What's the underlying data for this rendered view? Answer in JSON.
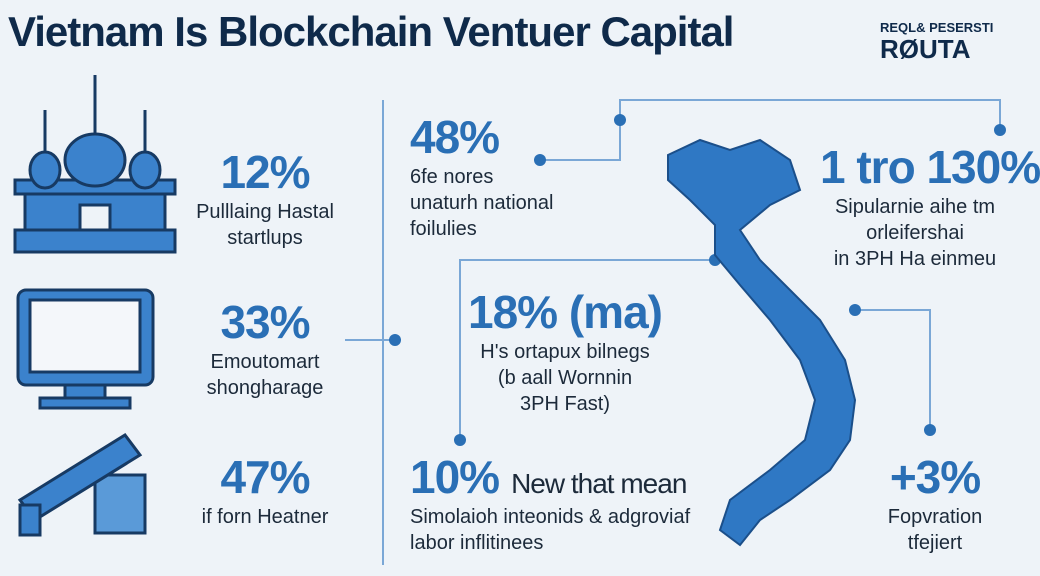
{
  "header": {
    "title": "Vietnam Is Blockchain Ventuer Capital",
    "logo": {
      "top": "REQL& PESERSTI",
      "bottom": "RØUTA"
    }
  },
  "stats": [
    {
      "value": "12%",
      "lines": [
        "Pulllaing Hastal",
        "startlups"
      ]
    },
    {
      "value": "33%",
      "lines": [
        "Emoutomart",
        "shongharage"
      ]
    },
    {
      "value": "47%",
      "lines": [
        "if forn Heatner"
      ]
    },
    {
      "value": "48%",
      "lines": [
        "6fe nores",
        "unaturh national",
        "foilulies"
      ]
    },
    {
      "value": "18% (ma)",
      "lines": [
        "H's ortapux bilnegs",
        "(b aall Wornnin",
        "3PH Fast)"
      ]
    },
    {
      "value": "10%",
      "lines": [
        "Simolaioh inteonids & adgroviaf",
        "labor inflitinees"
      ],
      "heading": "New that mean"
    },
    {
      "value": "1 tro 130%",
      "lines": [
        "Sipularnie aihe tm",
        "orleifershai",
        "in 3PH Ha einmeu"
      ]
    },
    {
      "value": "+3%",
      "lines": [
        "Fopvration",
        "tfejiert"
      ]
    }
  ]
}
